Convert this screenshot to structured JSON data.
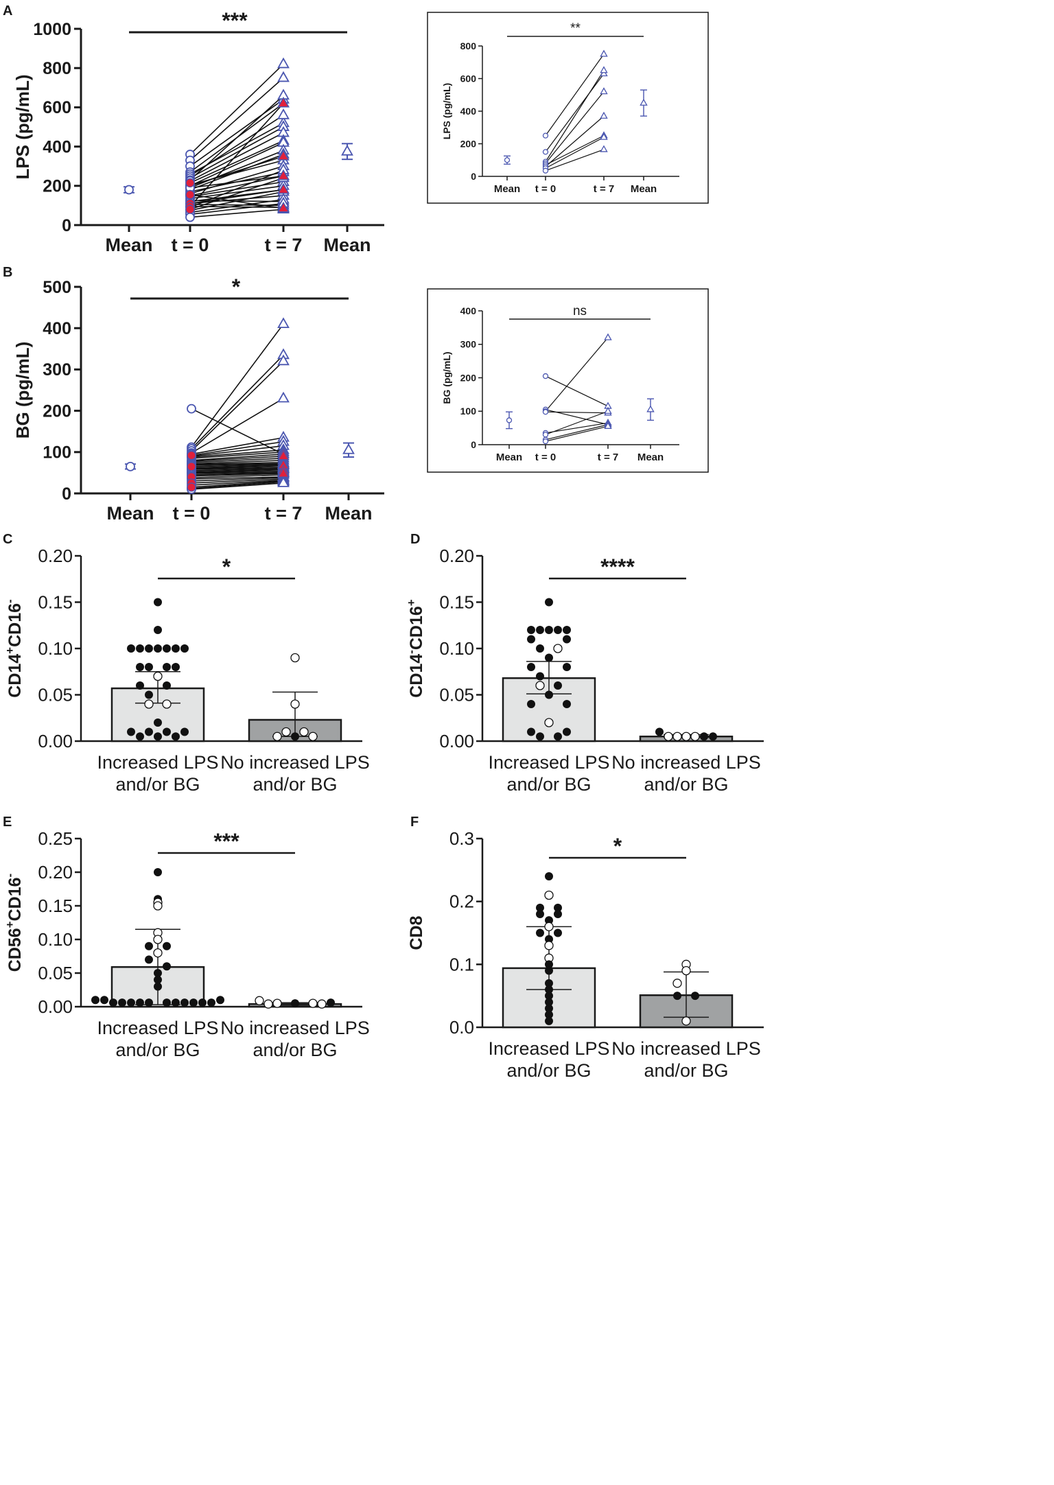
{
  "colors": {
    "ink": "#1a1a1a",
    "series": "#4a56b0",
    "red": "#e0203c",
    "bar_light": "#e3e4e4",
    "bar_dark": "#a0a2a3",
    "white": "#ffffff"
  },
  "chart_data": [
    {
      "id": "A",
      "panel_letter": "A",
      "type": "paired-scatter",
      "ylabel": "LPS (pg/mL)",
      "ylim": [
        0,
        1000
      ],
      "yticks": [
        "0",
        "200",
        "400",
        "600",
        "800",
        "1000"
      ],
      "xlabels": [
        "Mean",
        "t = 0",
        "t = 7",
        "Mean"
      ],
      "significance": "***",
      "mean_t0": {
        "value": 180,
        "err": 15
      },
      "mean_t7": {
        "value": 375,
        "err": 40
      },
      "pairs": [
        [
          360,
          820
        ],
        [
          330,
          750
        ],
        [
          300,
          640
        ],
        [
          270,
          620
        ],
        [
          260,
          520
        ],
        [
          250,
          560
        ],
        [
          240,
          500
        ],
        [
          230,
          660
        ],
        [
          225,
          470
        ],
        [
          215,
          430
        ],
        [
          205,
          330
        ],
        [
          200,
          420
        ],
        [
          190,
          380
        ],
        [
          180,
          360
        ],
        [
          170,
          270
        ],
        [
          160,
          300
        ],
        [
          150,
          250
        ],
        [
          145,
          220
        ],
        [
          135,
          200
        ],
        [
          125,
          120
        ],
        [
          120,
          180
        ],
        [
          110,
          150
        ],
        [
          105,
          100
        ],
        [
          95,
          90
        ],
        [
          90,
          280
        ],
        [
          80,
          240
        ],
        [
          75,
          170
        ],
        [
          65,
          130
        ],
        [
          55,
          110
        ],
        [
          40,
          80
        ],
        [
          200,
          350
        ],
        [
          190,
          250
        ],
        [
          155,
          85
        ],
        [
          110,
          180
        ],
        [
          95,
          620
        ]
      ],
      "red_t0": [
        215,
        155,
        110,
        95,
        80
      ],
      "red_t7": [
        350,
        250,
        85,
        180,
        620
      ]
    },
    {
      "id": "A-inset",
      "panel_letter": "",
      "type": "paired-scatter",
      "ylabel": "LPS (pg/mL)",
      "ylim": [
        0,
        800
      ],
      "yticks": [
        "0",
        "200",
        "400",
        "600",
        "800"
      ],
      "xlabels": [
        "Mean",
        "t = 0",
        "t = 7",
        "Mean"
      ],
      "significance": "**",
      "mean_t0": {
        "value": 100,
        "err": 25
      },
      "mean_t7": {
        "value": 450,
        "err": 80
      },
      "pairs": [
        [
          250,
          750
        ],
        [
          150,
          630
        ],
        [
          90,
          650
        ],
        [
          80,
          520
        ],
        [
          70,
          250
        ],
        [
          60,
          370
        ],
        [
          50,
          240
        ],
        [
          35,
          165
        ]
      ],
      "red_t0": [],
      "red_t7": []
    },
    {
      "id": "B",
      "panel_letter": "B",
      "type": "paired-scatter",
      "ylabel": "BG (pg/mL)",
      "ylim": [
        0,
        500
      ],
      "yticks": [
        "0",
        "100",
        "200",
        "300",
        "400",
        "500"
      ],
      "xlabels": [
        "Mean",
        "t = 0",
        "t = 7",
        "Mean"
      ],
      "significance": "*",
      "mean_t0": {
        "value": 65,
        "err": 6
      },
      "mean_t7": {
        "value": 105,
        "err": 17
      },
      "pairs": [
        [
          205,
          95
        ],
        [
          112,
          410
        ],
        [
          108,
          335
        ],
        [
          103,
          320
        ],
        [
          98,
          230
        ],
        [
          95,
          135
        ],
        [
          92,
          125
        ],
        [
          90,
          115
        ],
        [
          88,
          105
        ],
        [
          85,
          100
        ],
        [
          80,
          95
        ],
        [
          78,
          90
        ],
        [
          75,
          85
        ],
        [
          72,
          80
        ],
        [
          70,
          75
        ],
        [
          68,
          72
        ],
        [
          65,
          70
        ],
        [
          62,
          68
        ],
        [
          60,
          65
        ],
        [
          58,
          62
        ],
        [
          55,
          60
        ],
        [
          52,
          58
        ],
        [
          50,
          55
        ],
        [
          48,
          52
        ],
        [
          45,
          50
        ],
        [
          42,
          48
        ],
        [
          38,
          45
        ],
        [
          35,
          40
        ],
        [
          30,
          38
        ],
        [
          25,
          35
        ],
        [
          20,
          32
        ],
        [
          15,
          30
        ],
        [
          12,
          28
        ],
        [
          10,
          25
        ]
      ],
      "red_t0": [
        92,
        65,
        40,
        25,
        15
      ],
      "red_t7": [
        95,
        68,
        55,
        48,
        90
      ]
    },
    {
      "id": "B-inset",
      "panel_letter": "",
      "type": "paired-scatter",
      "ylabel": "BG (pg/mL)",
      "ylim": [
        0,
        400
      ],
      "yticks": [
        "0",
        "100",
        "200",
        "300",
        "400"
      ],
      "xlabels": [
        "Mean",
        "t = 0",
        "t = 7",
        "Mean"
      ],
      "significance": "ns",
      "mean_t0": {
        "value": 73,
        "err": 25
      },
      "mean_t7": {
        "value": 105,
        "err": 32
      },
      "pairs": [
        [
          205,
          115
        ],
        [
          105,
          60
        ],
        [
          100,
          320
        ],
        [
          98,
          95
        ],
        [
          35,
          65
        ],
        [
          15,
          60
        ],
        [
          10,
          55
        ],
        [
          30,
          100
        ]
      ],
      "red_t0": [],
      "red_t7": []
    },
    {
      "id": "C",
      "panel_letter": "C",
      "type": "bar",
      "ylabel_main": "CD14",
      "ylabel_sup1": "+",
      "ylabel_mid": "CD16",
      "ylabel_sup2": "-",
      "ylim": [
        0,
        0.2
      ],
      "yticks": [
        "0.00",
        "0.05",
        "0.10",
        "0.15",
        "0.20"
      ],
      "categories": [
        [
          "Increased LPS",
          "and/or BG"
        ],
        [
          "No increased LPS",
          "and/or BG"
        ]
      ],
      "values": [
        0.057,
        0.023
      ],
      "err_low": [
        0.041,
        0.005
      ],
      "err_high": [
        0.075,
        0.053
      ],
      "significance": "*",
      "points": [
        [
          [
            0.15,
            "f",
            0
          ],
          [
            0.12,
            "f",
            0
          ],
          [
            0.1,
            "f",
            -3
          ],
          [
            0.1,
            "f",
            -2
          ],
          [
            0.1,
            "f",
            -1
          ],
          [
            0.1,
            "f",
            0
          ],
          [
            0.1,
            "f",
            1
          ],
          [
            0.1,
            "f",
            2
          ],
          [
            0.1,
            "f",
            3
          ],
          [
            0.08,
            "f",
            -2
          ],
          [
            0.08,
            "f",
            -1
          ],
          [
            0.08,
            "f",
            1
          ],
          [
            0.08,
            "f",
            2
          ],
          [
            0.07,
            "o",
            0
          ],
          [
            0.06,
            "f",
            -2
          ],
          [
            0.06,
            "f",
            1
          ],
          [
            0.05,
            "f",
            -1
          ],
          [
            0.04,
            "o",
            -1
          ],
          [
            0.04,
            "o",
            1
          ],
          [
            0.02,
            "f",
            0
          ],
          [
            0.01,
            "f",
            -3
          ],
          [
            0.01,
            "f",
            -1
          ],
          [
            0.01,
            "f",
            1
          ],
          [
            0.01,
            "f",
            3
          ],
          [
            0.005,
            "f",
            -2
          ],
          [
            0.005,
            "f",
            0
          ],
          [
            0.005,
            "f",
            2
          ]
        ],
        [
          [
            0.09,
            "o",
            0
          ],
          [
            0.04,
            "o",
            0
          ],
          [
            0.01,
            "o",
            -1
          ],
          [
            0.01,
            "o",
            1
          ],
          [
            0.005,
            "o",
            -2
          ],
          [
            0.005,
            "f",
            0
          ],
          [
            0.005,
            "o",
            2
          ]
        ]
      ]
    },
    {
      "id": "D",
      "panel_letter": "D",
      "type": "bar",
      "ylabel_main": "CD14",
      "ylabel_sup1": "-",
      "ylabel_mid": "CD16",
      "ylabel_sup2": "+",
      "ylim": [
        0,
        0.2
      ],
      "yticks": [
        "0.00",
        "0.05",
        "0.10",
        "0.15",
        "0.20"
      ],
      "categories": [
        [
          "Increased LPS",
          "and/or BG"
        ],
        [
          "No increased LPS",
          "and/or BG"
        ]
      ],
      "values": [
        0.068,
        0.005
      ],
      "err_low": [
        0.051,
        0.004
      ],
      "err_high": [
        0.086,
        0.007
      ],
      "significance": "****",
      "points": [
        [
          [
            0.15,
            "f",
            0
          ],
          [
            0.12,
            "f",
            -2
          ],
          [
            0.12,
            "f",
            -1
          ],
          [
            0.12,
            "f",
            0
          ],
          [
            0.12,
            "f",
            1
          ],
          [
            0.12,
            "f",
            2
          ],
          [
            0.11,
            "f",
            -2
          ],
          [
            0.11,
            "f",
            2
          ],
          [
            0.1,
            "f",
            -1
          ],
          [
            0.1,
            "o",
            1
          ],
          [
            0.09,
            "f",
            0
          ],
          [
            0.08,
            "f",
            -2
          ],
          [
            0.08,
            "f",
            2
          ],
          [
            0.07,
            "f",
            -1
          ],
          [
            0.06,
            "o",
            -1
          ],
          [
            0.06,
            "f",
            1
          ],
          [
            0.05,
            "f",
            0
          ],
          [
            0.04,
            "f",
            -2
          ],
          [
            0.04,
            "f",
            2
          ],
          [
            0.02,
            "o",
            0
          ],
          [
            0.01,
            "f",
            -2
          ],
          [
            0.01,
            "f",
            2
          ],
          [
            0.005,
            "f",
            -1
          ],
          [
            0.005,
            "f",
            1
          ]
        ],
        [
          [
            0.01,
            "f",
            -3
          ],
          [
            0.005,
            "o",
            -2
          ],
          [
            0.005,
            "o",
            -1
          ],
          [
            0.005,
            "o",
            0
          ],
          [
            0.005,
            "o",
            1
          ],
          [
            0.005,
            "f",
            2
          ],
          [
            0.005,
            "f",
            3
          ]
        ]
      ]
    },
    {
      "id": "E",
      "panel_letter": "E",
      "type": "bar",
      "ylabel_main": "CD56",
      "ylabel_sup1": "+",
      "ylabel_mid": "CD16",
      "ylabel_sup2": "-",
      "ylim": [
        0,
        0.25
      ],
      "yticks": [
        "0.00",
        "0.05",
        "0.10",
        "0.15",
        "0.20",
        "0.25"
      ],
      "categories": [
        [
          "Increased LPS",
          "and/or BG"
        ],
        [
          "No increased LPS",
          "and/or BG"
        ]
      ],
      "values": [
        0.059,
        0.004
      ],
      "err_low": [
        0.003,
        0.002
      ],
      "err_high": [
        0.115,
        0.006
      ],
      "significance": "***",
      "points": [
        [
          [
            0.2,
            "f",
            0
          ],
          [
            0.16,
            "f",
            0
          ],
          [
            0.155,
            "o",
            0
          ],
          [
            0.15,
            "o",
            0
          ],
          [
            0.11,
            "o",
            0
          ],
          [
            0.1,
            "o",
            0
          ],
          [
            0.09,
            "f",
            -1
          ],
          [
            0.09,
            "f",
            1
          ],
          [
            0.08,
            "o",
            0
          ],
          [
            0.07,
            "f",
            -1
          ],
          [
            0.06,
            "f",
            1
          ],
          [
            0.05,
            "f",
            0
          ],
          [
            0.04,
            "f",
            0
          ],
          [
            0.03,
            "f",
            0
          ],
          [
            0.01,
            "f",
            -7
          ],
          [
            0.01,
            "f",
            -6
          ],
          [
            0.01,
            "f",
            7
          ],
          [
            0.006,
            "f",
            -5
          ],
          [
            0.006,
            "f",
            -4
          ],
          [
            0.006,
            "f",
            -3
          ],
          [
            0.006,
            "f",
            -2
          ],
          [
            0.006,
            "f",
            -1
          ],
          [
            0.006,
            "f",
            1
          ],
          [
            0.006,
            "f",
            2
          ],
          [
            0.006,
            "f",
            3
          ],
          [
            0.006,
            "f",
            4
          ],
          [
            0.006,
            "f",
            5
          ],
          [
            0.006,
            "f",
            6
          ]
        ],
        [
          [
            0.009,
            "o",
            -4
          ],
          [
            0.005,
            "o",
            -2
          ],
          [
            0.005,
            "f",
            0
          ],
          [
            0.005,
            "o",
            2
          ],
          [
            0.006,
            "f",
            4
          ],
          [
            0.004,
            "o",
            -3
          ],
          [
            0.004,
            "o",
            3
          ]
        ]
      ]
    },
    {
      "id": "F",
      "panel_letter": "F",
      "type": "bar",
      "ylabel_main": "CD8",
      "ylabel_sup1": "",
      "ylabel_mid": "",
      "ylabel_sup2": "",
      "ylim": [
        0,
        0.3
      ],
      "yticks": [
        "0.0",
        "0.1",
        "0.2",
        "0.3"
      ],
      "categories": [
        [
          "Increased LPS",
          "and/or BG"
        ],
        [
          "No increased LPS",
          "and/or BG"
        ]
      ],
      "values": [
        0.094,
        0.051
      ],
      "err_low": [
        0.06,
        0.016
      ],
      "err_high": [
        0.16,
        0.088
      ],
      "significance": "*",
      "points": [
        [
          [
            0.24,
            "f",
            0
          ],
          [
            0.21,
            "o",
            0
          ],
          [
            0.19,
            "f",
            -1
          ],
          [
            0.19,
            "f",
            1
          ],
          [
            0.18,
            "f",
            -1
          ],
          [
            0.18,
            "f",
            1
          ],
          [
            0.17,
            "f",
            0
          ],
          [
            0.16,
            "o",
            0
          ],
          [
            0.15,
            "f",
            -1
          ],
          [
            0.15,
            "f",
            1
          ],
          [
            0.14,
            "f",
            0
          ],
          [
            0.13,
            "o",
            0
          ],
          [
            0.11,
            "o",
            0
          ],
          [
            0.1,
            "f",
            0
          ],
          [
            0.09,
            "f",
            0
          ],
          [
            0.07,
            "f",
            0
          ],
          [
            0.06,
            "f",
            0
          ],
          [
            0.05,
            "f",
            0
          ],
          [
            0.04,
            "f",
            0
          ],
          [
            0.03,
            "f",
            0
          ],
          [
            0.02,
            "f",
            0
          ],
          [
            0.01,
            "f",
            0
          ]
        ],
        [
          [
            0.1,
            "o",
            0
          ],
          [
            0.09,
            "o",
            0
          ],
          [
            0.07,
            "o",
            -1
          ],
          [
            0.05,
            "f",
            -1
          ],
          [
            0.05,
            "f",
            1
          ],
          [
            0.01,
            "o",
            0
          ]
        ]
      ]
    }
  ]
}
